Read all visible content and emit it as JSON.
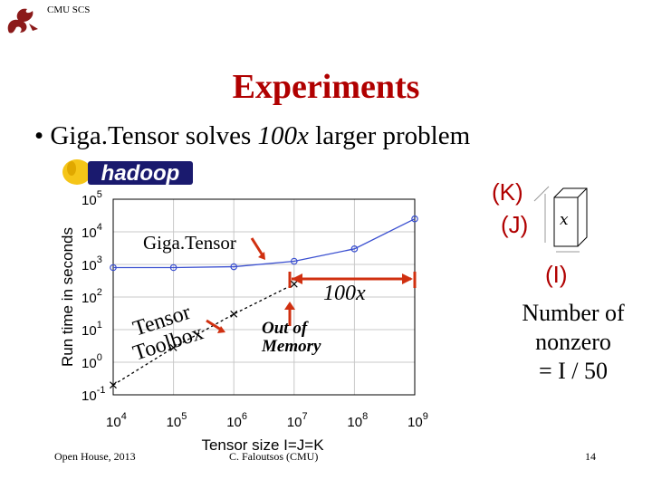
{
  "header": {
    "org": "CMU SCS",
    "logo_icon": "cmu-dragon-logo"
  },
  "slide": {
    "title": "Experiments",
    "bullet_prefix": "• Giga.Tensor solves ",
    "bullet_emphasis": "100x",
    "bullet_suffix": " larger problem",
    "hadoop_logo_text": "hadoop"
  },
  "annotations": {
    "gigatensor": "Giga.Tensor",
    "tensor_toolbox_line1": "Tensor",
    "tensor_toolbox_line2": "Toolbox",
    "out_of_memory_line1": "Out of",
    "out_of_memory_line2": "Memory",
    "speedup": "100x",
    "k_label": "(K)",
    "j_label": "(J)",
    "i_label": "(I)",
    "cube_label": "x",
    "nnz_line1": "Number of",
    "nnz_line2": "nonzero",
    "nnz_line3": "= I / 50"
  },
  "colors": {
    "title": "#b00000",
    "gigatensor_series": "#3a4fd0",
    "toolbox_series": "#000000",
    "arrow": "#d03010"
  },
  "footer": {
    "left": "Open House, 2013",
    "center": "C. Faloutsos (CMU)",
    "page": "14"
  },
  "chart_data": {
    "type": "line",
    "xlabel": "Tensor size I=J=K",
    "ylabel": "Run time in seconds",
    "x_scale": "log",
    "y_scale": "log",
    "xlim": [
      10000,
      1000000000
    ],
    "ylim": [
      0.1,
      100000
    ],
    "x_ticks": [
      {
        "value": 10000,
        "base": "10",
        "exp": "4"
      },
      {
        "value": 100000,
        "base": "10",
        "exp": "5"
      },
      {
        "value": 1000000,
        "base": "10",
        "exp": "6"
      },
      {
        "value": 10000000,
        "base": "10",
        "exp": "7"
      },
      {
        "value": 100000000,
        "base": "10",
        "exp": "8"
      },
      {
        "value": 1000000000,
        "base": "10",
        "exp": "9"
      }
    ],
    "y_ticks": [
      {
        "value": 0.1,
        "base": "10",
        "exp": "-1"
      },
      {
        "value": 1,
        "base": "10",
        "exp": "0"
      },
      {
        "value": 10,
        "base": "10",
        "exp": "1"
      },
      {
        "value": 100,
        "base": "10",
        "exp": "2"
      },
      {
        "value": 1000,
        "base": "10",
        "exp": "3"
      },
      {
        "value": 10000,
        "base": "10",
        "exp": "4"
      },
      {
        "value": 100000,
        "base": "10",
        "exp": "5"
      }
    ],
    "grid": true,
    "series": [
      {
        "name": "Giga.Tensor",
        "marker": "circle",
        "color": "#3a4fd0",
        "x": [
          10000,
          100000,
          1000000,
          10000000,
          100000000,
          1000000000
        ],
        "y": [
          800,
          800,
          850,
          1250,
          3000,
          25000
        ]
      },
      {
        "name": "Tensor Toolbox",
        "marker": "x",
        "color": "#000000",
        "x": [
          10000,
          100000,
          1000000,
          10000000
        ],
        "y": [
          0.2,
          2.8,
          30,
          250
        ]
      }
    ]
  }
}
